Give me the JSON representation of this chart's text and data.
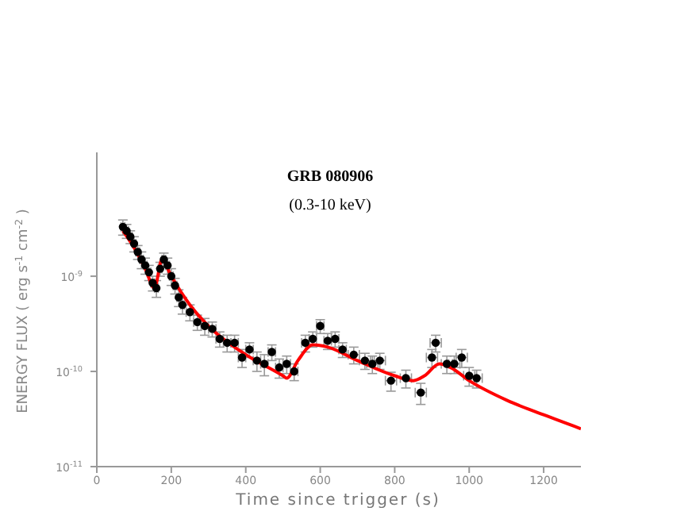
{
  "chart_data": {
    "type": "scatter",
    "title": "GRB 080906",
    "subtitle": "(0.3-10 keV)",
    "xlabel": "Time since trigger (s)",
    "ylabel": "ENERGY FLUX ( erg s$^{-1}$ cm$^{-2}$ )",
    "log": "y",
    "grid": false,
    "legend": false,
    "marker": "circle",
    "xlim": [
      0,
      1300
    ],
    "xticks": [
      0,
      200,
      400,
      600,
      800,
      1000,
      1200
    ],
    "ylim": [
      1e-11,
      2e-08
    ],
    "yticks": [
      {
        "value": 1e-11,
        "label": "10$^{-11}$"
      },
      {
        "value": 1e-10,
        "label": "10$^{-10}$"
      },
      {
        "value": 1e-09,
        "label": "10$^{-9}$"
      }
    ],
    "series": [
      {
        "color": "#000000",
        "x": [
          70,
          80,
          90,
          100,
          110,
          120,
          130,
          140,
          150,
          160,
          170,
          180,
          190,
          200,
          210,
          220,
          230,
          250,
          270,
          290,
          310,
          330,
          350,
          370,
          390,
          410,
          430,
          450,
          470,
          490,
          510,
          530,
          560,
          580,
          600,
          620,
          640,
          660,
          690,
          720,
          740,
          760,
          790,
          830,
          870,
          900,
          910,
          940,
          960,
          980,
          1000,
          1020
        ],
        "values": [
          3.3e-09,
          3e-09,
          2.6e-09,
          2.2e-09,
          1.8e-09,
          1.5e-09,
          1.3e-09,
          1.1e-09,
          8.5e-10,
          7.5e-10,
          1.2e-09,
          1.5e-09,
          1.3e-09,
          1e-09,
          8e-10,
          6e-10,
          5e-10,
          4.2e-10,
          3.3e-10,
          3e-10,
          2.8e-10,
          2.2e-10,
          2e-10,
          2e-10,
          1.4e-10,
          1.7e-10,
          1.3e-10,
          1.2e-10,
          1.6e-10,
          1.1e-10,
          1.2e-10,
          1e-10,
          2e-10,
          2.2e-10,
          3e-10,
          2.1e-10,
          2.2e-10,
          1.7e-10,
          1.5e-10,
          1.3e-10,
          1.2e-10,
          1.3e-10,
          8e-11,
          8.5e-11,
          6e-11,
          1.4e-10,
          2e-10,
          1.2e-10,
          1.2e-10,
          1.4e-10,
          9e-11,
          8.5e-11
        ],
        "errors": [
          6e-10,
          5e-10,
          4e-10,
          4e-10,
          3e-10,
          3e-10,
          2.5e-10,
          2e-10,
          1.5e-10,
          1.5e-10,
          2e-10,
          2.5e-10,
          2.5e-10,
          2e-10,
          1.5e-10,
          1.2e-10,
          1e-10,
          8e-11,
          6e-11,
          6e-11,
          5e-11,
          4e-11,
          4e-11,
          4e-11,
          3e-11,
          3e-11,
          3e-11,
          3e-11,
          3e-11,
          2.5e-11,
          2.5e-11,
          2e-11,
          4e-11,
          4e-11,
          5e-11,
          4e-11,
          4e-11,
          3e-11,
          3e-11,
          2.5e-11,
          2.5e-11,
          2.5e-11,
          1.8e-11,
          1.8e-11,
          1.5e-11,
          3e-11,
          4e-11,
          2.5e-11,
          2.5e-11,
          3e-11,
          2e-11,
          1.8e-11
        ],
        "xerrors": [
          5,
          5,
          5,
          5,
          5,
          5,
          5,
          5,
          5,
          5,
          5,
          5,
          5,
          5,
          5,
          5,
          5,
          10,
          10,
          10,
          10,
          10,
          10,
          10,
          10,
          10,
          10,
          10,
          10,
          10,
          10,
          10,
          10,
          10,
          10,
          10,
          10,
          10,
          15,
          15,
          15,
          15,
          15,
          15,
          15,
          15,
          15,
          15,
          15,
          15,
          15,
          15
        ]
      },
      {
        "type": "line",
        "marker": "none",
        "color": "#ff0000",
        "x": [
          70,
          100,
          130,
          155,
          175,
          200,
          250,
          300,
          400,
          500,
          510,
          540,
          580,
          620,
          700,
          800,
          850,
          880,
          920,
          950,
          1000,
          1100,
          1200,
          1300
        ],
        "values": [
          3e-09,
          2e-09,
          1.2e-09,
          7.5e-10,
          1.5e-09,
          1e-09,
          5e-10,
          3e-10,
          1.5e-10,
          9e-11,
          8.5e-11,
          1.3e-10,
          1.9e-10,
          1.8e-10,
          1.3e-10,
          9e-11,
          8e-11,
          9e-11,
          1.2e-10,
          1.1e-10,
          8e-11,
          5e-11,
          3.5e-11,
          2.5e-11
        ]
      }
    ]
  }
}
